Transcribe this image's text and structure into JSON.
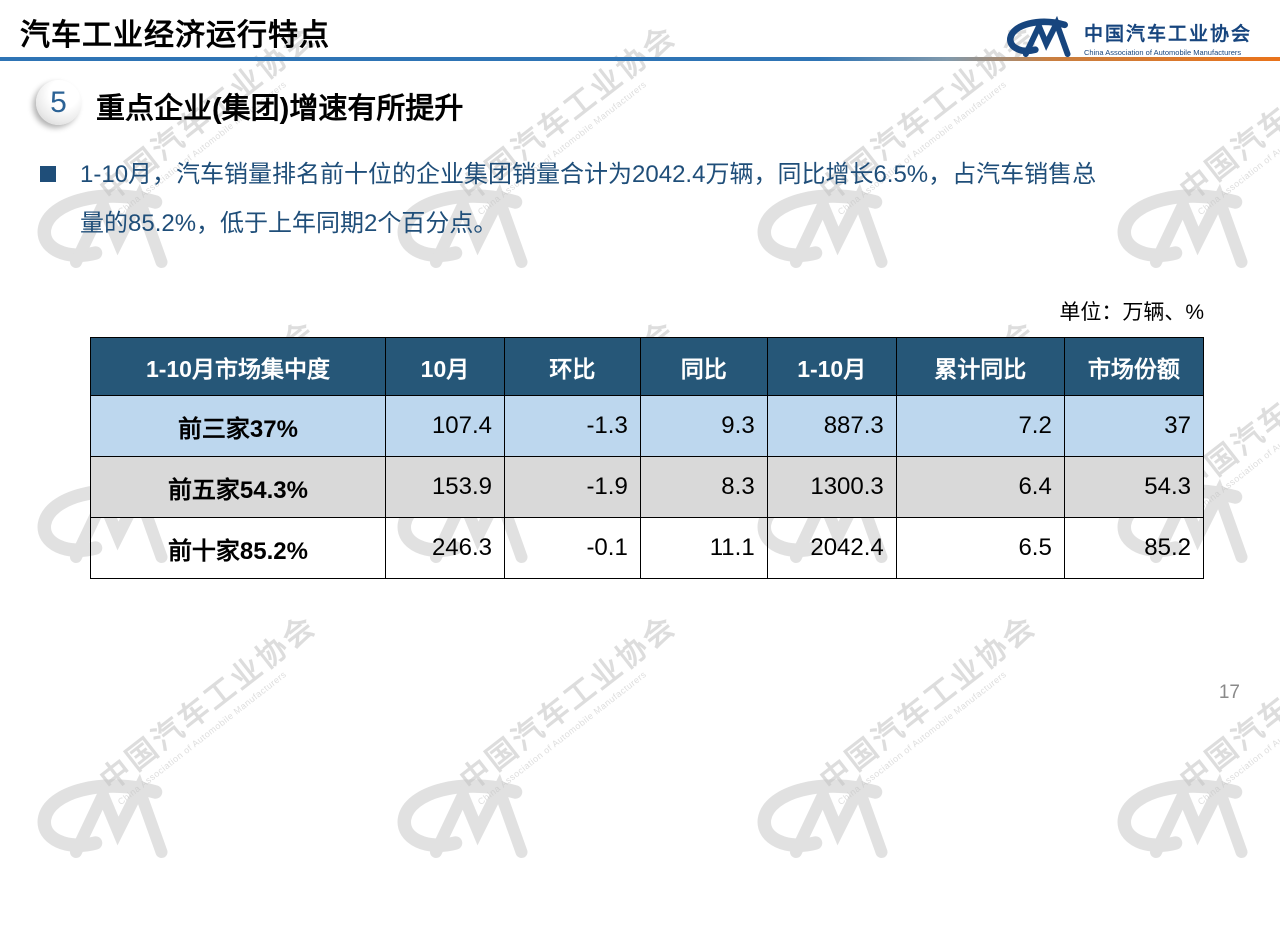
{
  "slide": {
    "title": "汽车工业经济运行特点",
    "page_number": "17"
  },
  "logo": {
    "name_cn": "中国汽车工业协会",
    "name_en": "China Association of Automobile Manufacturers"
  },
  "section": {
    "number": "5",
    "heading": "重点企业(集团)增速有所提升"
  },
  "bullet": {
    "line1": "1-10月，汽车销量排名前十位的企业集团销量合计为2042.4万辆，同比增长6.5%，占汽车销售总",
    "line2": "量的85.2%，低于上年同期2个百分点。"
  },
  "table": {
    "unit_label": "单位：万辆、%",
    "headers": [
      "1-10月市场集中度",
      "10月",
      "环比",
      "同比",
      "1-10月",
      "累计同比",
      "市场份额"
    ],
    "rows": [
      {
        "label": "前三家37%",
        "values": [
          "107.4",
          "-1.3",
          "9.3",
          "887.3",
          "7.2",
          "37"
        ]
      },
      {
        "label": "前五家54.3%",
        "values": [
          "153.9",
          "-1.9",
          "8.3",
          "1300.3",
          "6.4",
          "54.3"
        ]
      },
      {
        "label": "前十家85.2%",
        "values": [
          "246.3",
          "-0.1",
          "11.1",
          "2042.4",
          "6.5",
          "85.2"
        ]
      }
    ]
  },
  "watermark": {
    "text_cn": "中国汽车工业协会",
    "text_en": "China Association of Automobile Manufacturers"
  },
  "colors": {
    "table_header_bg": "#265778",
    "row_light_blue": "#BDD7EE",
    "row_gray": "#D9D9D9",
    "body_text_blue": "#1F4E79",
    "divider_blue": "#2E74B5",
    "divider_orange": "#E9731B",
    "logo_blue": "#17457E"
  }
}
